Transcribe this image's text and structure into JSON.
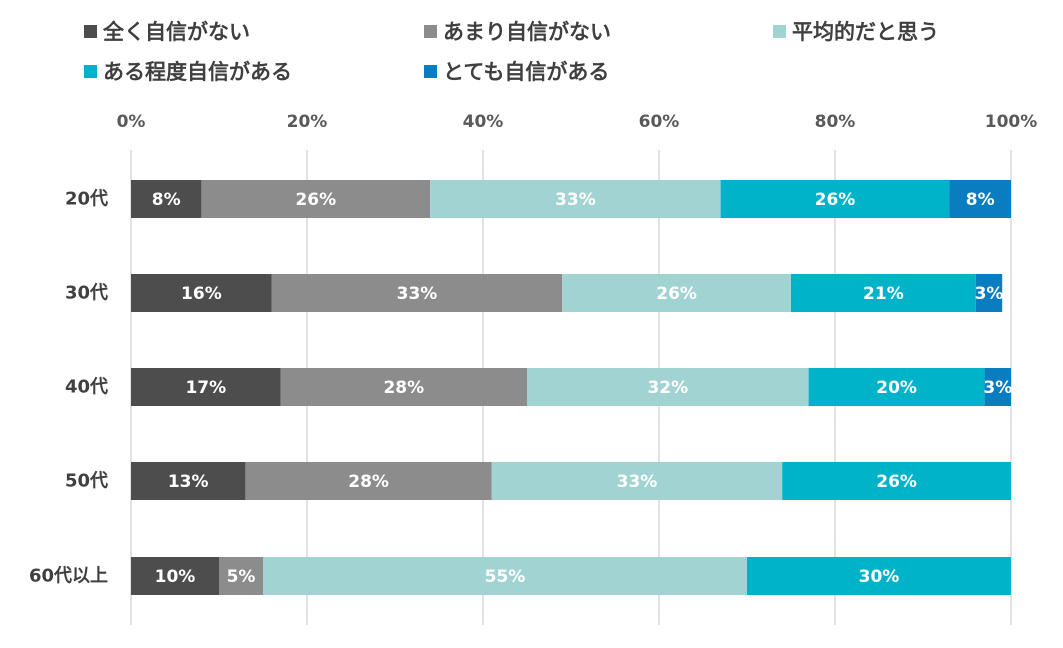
{
  "chart_data": {
    "type": "bar",
    "orientation": "horizontal",
    "stacked": true,
    "categories": [
      "20代",
      "30代",
      "40代",
      "50代",
      "60代以上"
    ],
    "series": [
      {
        "name": "全く自信がない",
        "color": "#4d4d4d",
        "values": [
          8,
          16,
          17,
          13,
          10
        ],
        "labels": [
          "8%",
          "16%",
          "17%",
          "13%",
          "10%"
        ]
      },
      {
        "name": "あまり自信がない",
        "color": "#8c8c8c",
        "values": [
          26,
          33,
          28,
          28,
          5
        ],
        "labels": [
          "26%",
          "33%",
          "28%",
          "28%",
          "5%"
        ]
      },
      {
        "name": "平均的だと思う",
        "color": "#a2d3d3",
        "values": [
          33,
          26,
          32,
          33,
          55
        ],
        "labels": [
          "33%",
          "26%",
          "32%",
          "33%",
          "55%"
        ]
      },
      {
        "name": "ある程度自信がある",
        "color": "#00b3c8",
        "values": [
          26,
          21,
          20,
          26,
          30
        ],
        "labels": [
          "26%",
          "21%",
          "20%",
          "26%",
          "30%"
        ]
      },
      {
        "name": "とても自信がある",
        "color": "#0a7dc0",
        "values": [
          8,
          3,
          3,
          0,
          0
        ],
        "labels": [
          "8%",
          "3%",
          "3%",
          "",
          ""
        ]
      }
    ],
    "xlim": [
      0,
      100
    ],
    "xticks": [
      "0%",
      "20%",
      "40%",
      "60%",
      "80%",
      "100%"
    ],
    "grid": true,
    "legend_position": "top",
    "title": "",
    "xlabel": "",
    "ylabel": ""
  }
}
